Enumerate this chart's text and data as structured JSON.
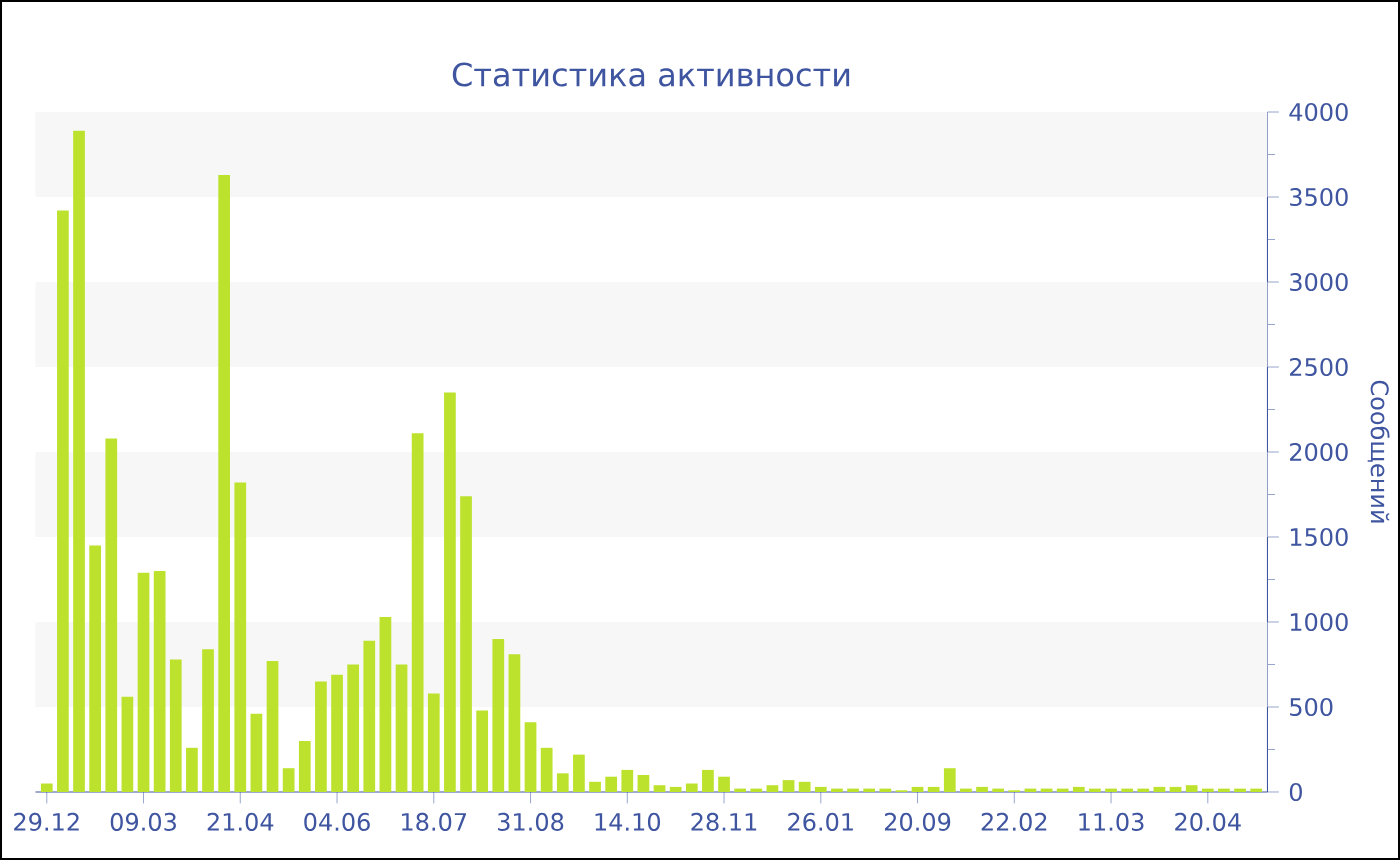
{
  "chart_data": {
    "type": "bar",
    "title": "Статистика активности",
    "ylabel": "Сообщений",
    "categories": [
      "29.12",
      null,
      null,
      null,
      null,
      null,
      "09.03",
      null,
      null,
      null,
      null,
      null,
      "21.04",
      null,
      null,
      null,
      null,
      null,
      "04.06",
      null,
      null,
      null,
      null,
      null,
      "18.07",
      null,
      null,
      null,
      null,
      null,
      "31.08",
      null,
      null,
      null,
      null,
      null,
      "14.10",
      null,
      null,
      null,
      null,
      null,
      "28.11",
      null,
      null,
      null,
      null,
      null,
      "26.01",
      null,
      null,
      null,
      null,
      null,
      "20.09",
      null,
      null,
      null,
      null,
      null,
      "22.02",
      null,
      null,
      null,
      null,
      null,
      "11.03",
      null,
      null,
      null,
      null,
      null,
      "20.04",
      null,
      null,
      null
    ],
    "values": [
      50,
      3420,
      3890,
      1450,
      2080,
      560,
      1290,
      1300,
      780,
      260,
      840,
      3630,
      1820,
      460,
      770,
      140,
      300,
      650,
      690,
      750,
      890,
      1030,
      750,
      2110,
      580,
      2350,
      1740,
      480,
      900,
      810,
      410,
      260,
      110,
      220,
      60,
      90,
      130,
      100,
      40,
      30,
      50,
      130,
      90,
      20,
      20,
      40,
      70,
      60,
      30,
      20,
      20,
      20,
      20,
      10,
      30,
      30,
      140,
      20,
      30,
      20,
      10,
      20,
      20,
      20,
      30,
      20,
      20,
      20,
      20,
      30,
      30,
      40,
      20,
      20,
      20,
      20
    ],
    "color": "#bde22e",
    "ylim": [
      0,
      4000
    ],
    "yticks": [
      0,
      500,
      1000,
      1500,
      2000,
      2500,
      3000,
      3500,
      4000
    ],
    "bands": [
      {
        "axis": "y",
        "from": 500,
        "to": 1000,
        "color": "#f7f7f7"
      },
      {
        "axis": "y",
        "from": 1500,
        "to": 2000,
        "color": "#f7f7f7"
      },
      {
        "axis": "y",
        "from": 2500,
        "to": 3000,
        "color": "#f7f7f7"
      },
      {
        "axis": "y",
        "from": 3500,
        "to": 4000,
        "color": "#f7f7f7"
      }
    ]
  }
}
